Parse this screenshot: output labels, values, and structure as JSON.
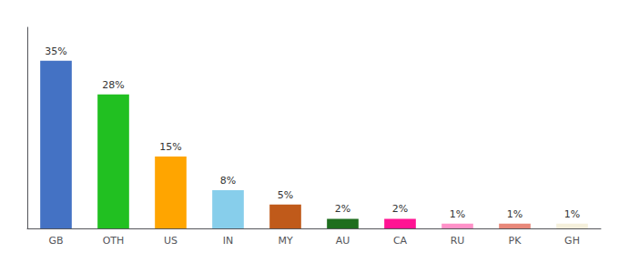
{
  "chart_data": {
    "type": "bar",
    "categories": [
      "GB",
      "OTH",
      "US",
      "IN",
      "MY",
      "AU",
      "CA",
      "RU",
      "PK",
      "GH"
    ],
    "values": [
      35,
      28,
      15,
      8,
      5,
      2,
      2,
      1,
      1,
      1
    ],
    "value_labels": [
      "35%",
      "28%",
      "15%",
      "8%",
      "5%",
      "2%",
      "2%",
      "1%",
      "1%",
      "1%"
    ],
    "colors": [
      "#4472C4",
      "#21C021",
      "#FFA500",
      "#87CEEB",
      "#C05A1A",
      "#1E6E1E",
      "#FF1493",
      "#FF91C8",
      "#E8887A",
      "#F5F0DC"
    ],
    "ylim": [
      0,
      42
    ],
    "grid": false,
    "data_labels": true,
    "tick_labels": "x"
  }
}
